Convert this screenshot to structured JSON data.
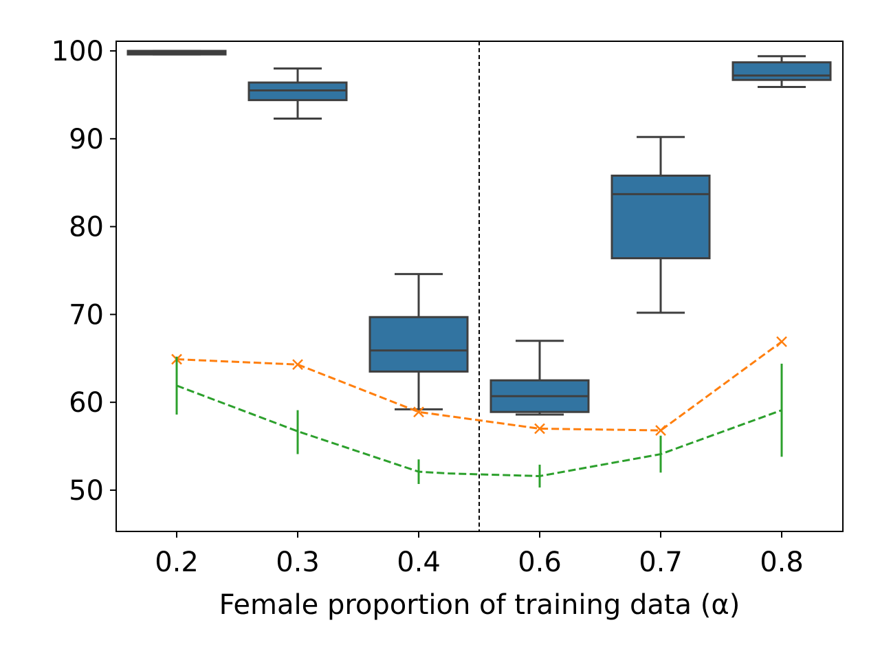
{
  "chart_data": {
    "type": "box",
    "title": "",
    "xlabel": "Female proportion of training data (α)",
    "ylabel": "",
    "categories": [
      "0.2",
      "0.3",
      "0.4",
      "0.6",
      "0.7",
      "0.8"
    ],
    "ylim": [
      45.3,
      101.1
    ],
    "yticks": [
      "50",
      "60",
      "70",
      "80",
      "90",
      "100"
    ],
    "grid": false,
    "separator_after_category": "0.4",
    "colors": {
      "box": "#3274a1",
      "box_edge": "#3f3f3f",
      "orange_series": "#ff7f0e",
      "green_series": "#2ca02c",
      "separator": "#000000"
    },
    "boxes": [
      {
        "category": "0.2",
        "min": 99.6,
        "q1": 99.6,
        "median": 99.8,
        "q3": 100.0,
        "max": 100.0
      },
      {
        "category": "0.3",
        "min": 92.3,
        "q1": 94.4,
        "median": 95.5,
        "q3": 96.4,
        "max": 98.0
      },
      {
        "category": "0.4",
        "min": 59.2,
        "q1": 63.5,
        "median": 65.9,
        "q3": 69.7,
        "max": 74.6
      },
      {
        "category": "0.6",
        "min": 58.6,
        "q1": 58.9,
        "median": 60.7,
        "q3": 62.5,
        "max": 67.0
      },
      {
        "category": "0.7",
        "min": 70.2,
        "q1": 76.4,
        "median": 83.7,
        "q3": 85.8,
        "max": 90.2
      },
      {
        "category": "0.8",
        "min": 95.9,
        "q1": 96.7,
        "median": 97.2,
        "q3": 98.7,
        "max": 99.4
      }
    ],
    "series": [
      {
        "name": "orange",
        "marker": "x",
        "linestyle": "dashed",
        "x": [
          "0.2",
          "0.3",
          "0.4",
          "0.6",
          "0.7",
          "0.8"
        ],
        "values": [
          64.9,
          64.3,
          58.9,
          57.0,
          56.8,
          66.9
        ]
      },
      {
        "name": "green",
        "marker": "errorbar",
        "linestyle": "dashed",
        "x": [
          "0.2",
          "0.3",
          "0.4",
          "0.45",
          "0.6",
          "0.7",
          "0.8"
        ],
        "values": [
          61.9,
          56.7,
          52.1,
          51.9,
          51.6,
          54.1,
          59.1
        ],
        "error_low": [
          58.6,
          54.1,
          50.7,
          null,
          50.3,
          52.0,
          53.8
        ],
        "error_high": [
          65.2,
          59.1,
          53.5,
          null,
          52.9,
          56.2,
          64.4
        ]
      }
    ]
  }
}
